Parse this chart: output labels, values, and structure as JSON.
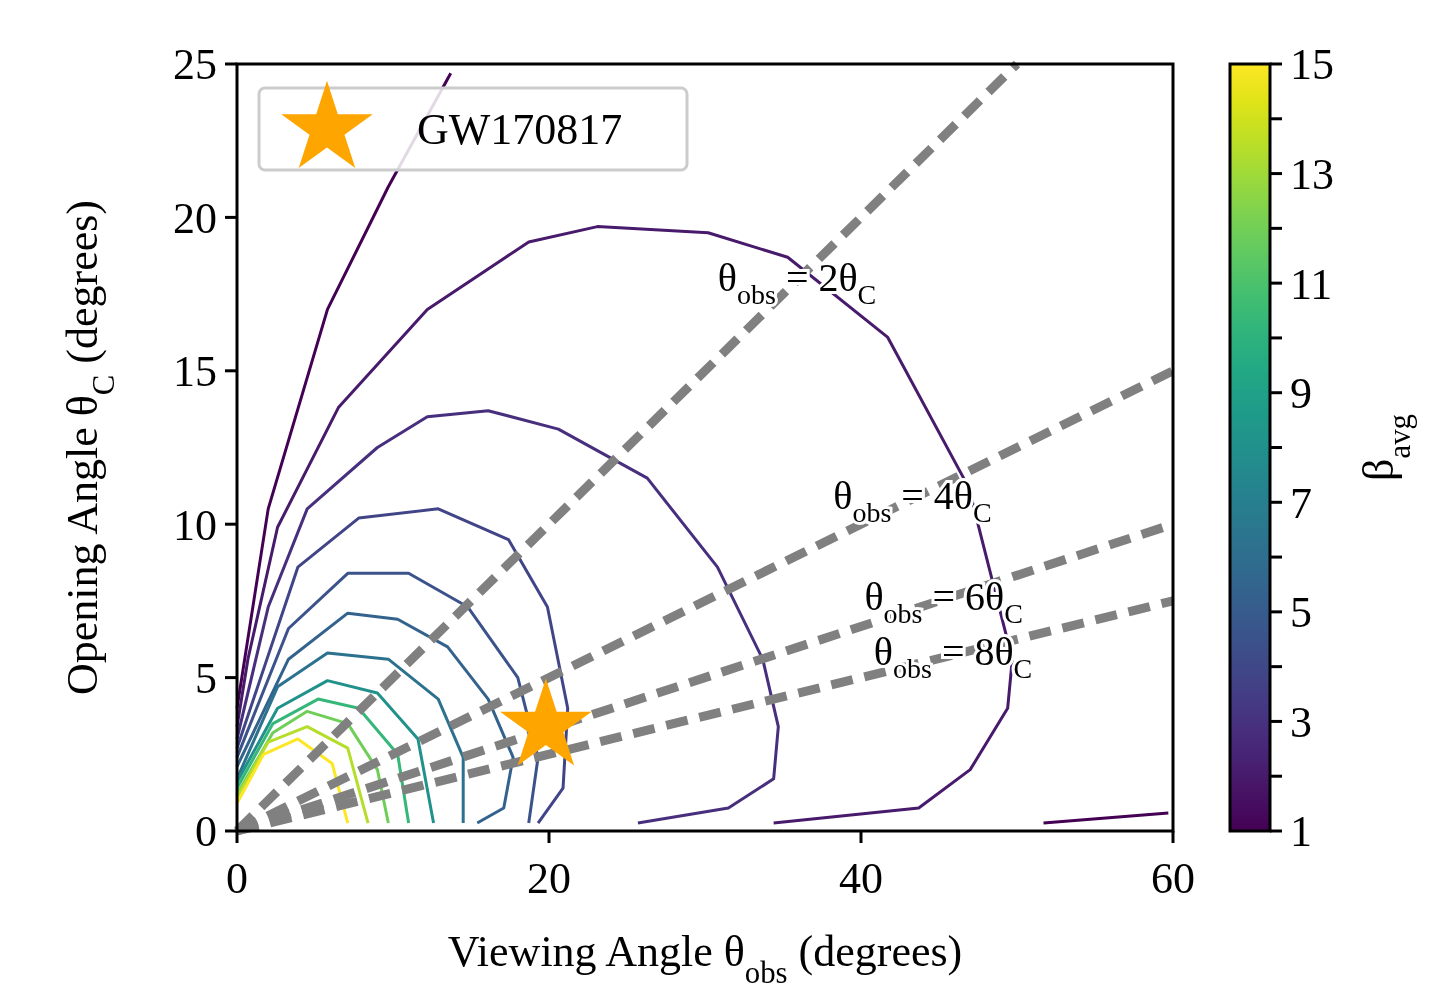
{
  "chart_data": {
    "type": "line",
    "xlabel": "Viewing Angle θ$_{obs}$ (degrees)",
    "ylabel": "Opening Angle θ$_{C}$ (degrees)",
    "clabel": "β$_{avg}$",
    "xlim": [
      0,
      60
    ],
    "xticks": [
      0,
      20,
      40,
      60
    ],
    "ylim": [
      0,
      25
    ],
    "yticks": [
      0,
      5,
      10,
      15,
      20,
      25
    ],
    "clim": [
      1,
      15
    ],
    "cticks": [
      1,
      {
        "value": 2,
        "label": null
      },
      3,
      {
        "value": 4,
        "label": null
      },
      5,
      {
        "value": 6,
        "label": null
      },
      7,
      {
        "value": 8,
        "label": null
      },
      9,
      {
        "value": 10,
        "label": null
      },
      11,
      {
        "value": 12,
        "label": null
      },
      13,
      {
        "value": 14,
        "label": null
      },
      15
    ],
    "grid": false,
    "legend": "top left",
    "series": [
      {
        "color": "#440154",
        "x": [
          0,
          2,
          5.8,
          9.7,
          13.7
        ],
        "values": [
          4,
          10.5,
          17,
          21,
          24.7
        ]
      },
      {
        "color": "#481a6c",
        "x": [
          0,
          0.7,
          2.6,
          6.5,
          12.2,
          18.7,
          23.1,
          30.2,
          35.3,
          41.7,
          46.9,
          49.7,
          49.4,
          47,
          43.7,
          34.4
        ],
        "values": [
          3.4,
          5.6,
          9.9,
          13.8,
          17,
          19.2,
          19.7,
          19.5,
          18.7,
          16.1,
          11.2,
          5.6,
          4,
          2,
          0.75,
          0.26
        ]
      },
      {
        "color": "#440154",
        "x": [
          51.7,
          59.7
        ],
        "values": [
          0.26,
          0.59
        ]
      },
      {
        "color": "#472f7d",
        "x": [
          0,
          2,
          4.5,
          9,
          12.2,
          16.1,
          20.6,
          26.3,
          30.8,
          33.7,
          34.7,
          34.4,
          31.5,
          25.7
        ],
        "values": [
          3,
          7.3,
          10.5,
          12.5,
          13.5,
          13.7,
          13.1,
          11.5,
          8.6,
          5.6,
          3.4,
          1.7,
          0.75,
          0.26
        ]
      },
      {
        "color": "#414487",
        "x": [
          0,
          3.9,
          7.8,
          12.9,
          17.4,
          19.9,
          21.2,
          20.9,
          19.3
        ],
        "values": [
          2.7,
          8.6,
          10.2,
          10.5,
          9.5,
          7.3,
          4,
          1.4,
          0.26
        ]
      },
      {
        "color": "#3b528b",
        "x": [
          0,
          3.3,
          7.1,
          11,
          14.8,
          18,
          19.3,
          18.7
        ],
        "values": [
          2.4,
          6.6,
          8.4,
          8.4,
          7.3,
          5,
          2.4,
          0.26
        ]
      },
      {
        "color": "#33638d",
        "x": [
          0,
          3.3,
          7.1,
          10.3,
          13.5,
          16.1,
          17.7,
          17.1,
          15.4
        ],
        "values": [
          2.1,
          5.6,
          7.1,
          6.9,
          6,
          4.3,
          2.4,
          0.75,
          0.26
        ]
      },
      {
        "color": "#2c728e",
        "x": [
          0,
          2.6,
          5.8,
          9.7,
          12.9,
          14.5,
          14.5
        ],
        "values": [
          1.7,
          4.7,
          5.8,
          5.6,
          4.3,
          2.4,
          0.26
        ]
      },
      {
        "color": "#21918c",
        "x": [
          0,
          2.6,
          5.8,
          9,
          11.6,
          12.6
        ],
        "values": [
          1.6,
          4,
          4.9,
          4.5,
          3,
          0.26
        ]
      },
      {
        "color": "#35b779",
        "x": [
          0,
          2.3,
          5.2,
          7.8,
          10.3,
          11
        ],
        "values": [
          1.4,
          3.5,
          4.3,
          4,
          2.5,
          0.26
        ]
      },
      {
        "color": "#6ece58",
        "x": [
          0,
          2.3,
          4.5,
          7.1,
          9,
          9.7
        ],
        "values": [
          1.2,
          3.2,
          3.9,
          3.5,
          2,
          0.26
        ]
      },
      {
        "color": "#b5de2b",
        "x": [
          0,
          2,
          4.5,
          7.1,
          8.4
        ],
        "values": [
          1.1,
          2.9,
          3.4,
          2.7,
          0.26
        ]
      },
      {
        "color": "#fde725",
        "x": [
          0,
          1.7,
          3.9,
          6.1,
          7.1
        ],
        "values": [
          0.9,
          2.5,
          3,
          2.2,
          0.26
        ]
      },
      {
        "color": "#808080",
        "line_style": "dashed",
        "x": [
          0,
          50
        ],
        "values": [
          0,
          25
        ]
      },
      {
        "color": "#808080",
        "line_style": "dashed",
        "x": [
          0,
          60
        ],
        "values": [
          0,
          15
        ]
      },
      {
        "color": "#808080",
        "line_style": "dashed",
        "x": [
          0,
          60
        ],
        "values": [
          0,
          10
        ]
      },
      {
        "color": "#808080",
        "line_style": "dashed",
        "x": [
          0,
          60
        ],
        "values": [
          0,
          7.5
        ]
      },
      {
        "type": "scatter",
        "name": "GW170817",
        "color": "#ffa500",
        "marker": "star",
        "x": [
          19.8
        ],
        "values": [
          3.4
        ]
      }
    ],
    "annotations": [
      {
        "text": "θ$_{obs}$ = 2θ$_{C}$",
        "x": 35.9,
        "y": 17.9
      },
      {
        "text": "θ$_{obs}$ = 4θ$_{C}$",
        "x": 43.3,
        "y": 10.8
      },
      {
        "text": "θ$_{obs}$ = 6θ$_{C}$",
        "x": 45.3,
        "y": 7.5
      },
      {
        "text": "θ$_{obs}$ = 8θ$_{C}$",
        "x": 45.9,
        "y": 5.7
      }
    ]
  }
}
